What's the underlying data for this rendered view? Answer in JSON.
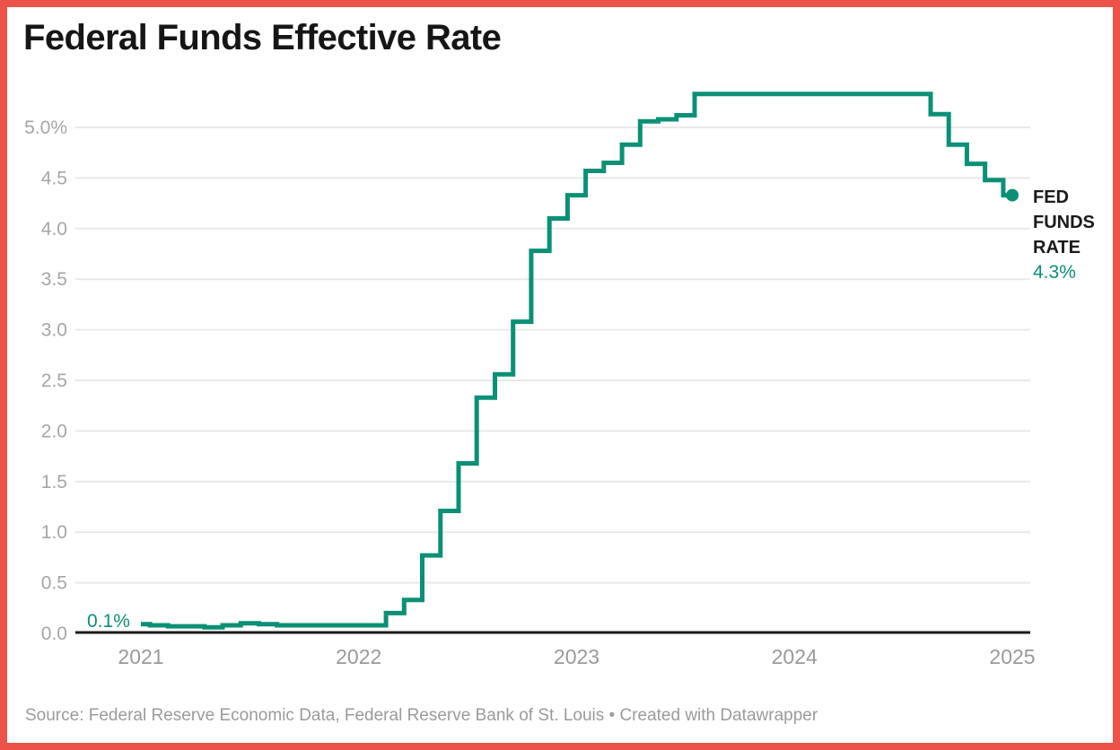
{
  "frame": {
    "border_color": "#eb5349",
    "background": "#ffffff"
  },
  "chart_data": {
    "type": "line",
    "interpolation": "step-center",
    "title": "Federal Funds Effective Rate",
    "xlabel": "",
    "ylabel": "",
    "unit": "%",
    "frequency": "monthly",
    "x_start": "2021-01",
    "x_end": "2025-01",
    "line_color": "#0b9076",
    "grid": true,
    "ylim": [
      0,
      5.45
    ],
    "values": [
      0.09,
      0.08,
      0.07,
      0.07,
      0.06,
      0.08,
      0.1,
      0.09,
      0.08,
      0.08,
      0.08,
      0.08,
      0.08,
      0.08,
      0.2,
      0.33,
      0.77,
      1.21,
      1.68,
      2.33,
      2.56,
      3.08,
      3.78,
      4.1,
      4.33,
      4.57,
      4.65,
      4.83,
      5.06,
      5.08,
      5.12,
      5.33,
      5.33,
      5.33,
      5.33,
      5.33,
      5.33,
      5.33,
      5.33,
      5.33,
      5.33,
      5.33,
      5.33,
      5.33,
      5.13,
      4.83,
      4.64,
      4.48,
      4.33
    ],
    "x_ticks": [
      {
        "label": "2021",
        "month_index": 0
      },
      {
        "label": "2022",
        "month_index": 12
      },
      {
        "label": "2023",
        "month_index": 24
      },
      {
        "label": "2024",
        "month_index": 36
      },
      {
        "label": "2025",
        "month_index": 48
      }
    ],
    "y_ticks": [
      {
        "label": "0.0",
        "value": 0.0
      },
      {
        "label": "0.5",
        "value": 0.5
      },
      {
        "label": "1.0",
        "value": 1.0
      },
      {
        "label": "1.5",
        "value": 1.5
      },
      {
        "label": "2.0",
        "value": 2.0
      },
      {
        "label": "2.5",
        "value": 2.5
      },
      {
        "label": "3.0",
        "value": 3.0
      },
      {
        "label": "3.5",
        "value": 3.5
      },
      {
        "label": "4.0",
        "value": 4.0
      },
      {
        "label": "4.5",
        "value": 4.5
      },
      {
        "label": "5.0%",
        "value": 5.0
      }
    ],
    "annotations": {
      "start_label": {
        "text": "0.1%"
      },
      "end_label": {
        "lines": [
          "FED",
          "FUNDS",
          "RATE"
        ],
        "value_text": "4.3%"
      }
    },
    "colors": {
      "gridline": "#e9e9e9",
      "axis_line": "#1a1a1a",
      "y_tick_text": "#a6a6a6",
      "x_tick_text": "#9a9a9a"
    }
  },
  "footer": {
    "source": "Source: Federal Reserve Economic Data, Federal Reserve Bank of St. Louis • Created with Datawrapper"
  }
}
